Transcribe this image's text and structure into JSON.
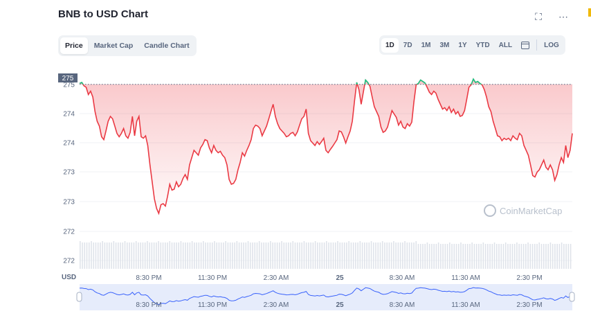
{
  "title": "BNB to USD Chart",
  "icons": {
    "fullscreen": "fullscreen-icon",
    "more": "more-icon",
    "calendar": "calendar-icon"
  },
  "labels": {
    "fullscreen": "⛶",
    "more": "⋯"
  },
  "tabs": [
    {
      "label": "Price",
      "active": true
    },
    {
      "label": "Market Cap",
      "active": false
    },
    {
      "label": "Candle Chart",
      "active": false
    }
  ],
  "ranges": [
    {
      "label": "1D",
      "active": true
    },
    {
      "label": "7D",
      "active": false
    },
    {
      "label": "1M",
      "active": false
    },
    {
      "label": "3M",
      "active": false
    },
    {
      "label": "1Y",
      "active": false
    },
    {
      "label": "YTD",
      "active": false
    },
    {
      "label": "ALL",
      "active": false
    }
  ],
  "log_label": "LOG",
  "watermark": "CoinMarketCap",
  "colors": {
    "down": "#ea3943",
    "up": "#16c784",
    "navigator": "#3861fb"
  },
  "chart_data": {
    "type": "area",
    "currency_label": "USD",
    "price_label": "275",
    "y_ticks": [
      "275",
      "274",
      "274",
      "273",
      "273",
      "272",
      "272"
    ],
    "x_ticks": [
      "8:30 PM",
      "11:30 PM",
      "2:30 AM",
      "25",
      "8:30 AM",
      "11:30 AM",
      "2:30 PM"
    ],
    "ylim": [
      271.8,
      275.2
    ],
    "open_price": 274.96,
    "series": [
      {
        "values": [
          274.98,
          275.0,
          274.93,
          274.9,
          274.75,
          274.82,
          274.7,
          274.4,
          274.2,
          274.1,
          273.88,
          273.82,
          274.0,
          274.2,
          274.3,
          274.25,
          274.1,
          273.95,
          273.88,
          273.95,
          274.05,
          273.9,
          273.85,
          273.97,
          274.3,
          273.9,
          274.2,
          274.3,
          273.88,
          273.85,
          273.9,
          273.7,
          273.3,
          272.95,
          272.6,
          272.4,
          272.3,
          272.48,
          272.5,
          272.45,
          272.65,
          272.9,
          272.78,
          272.8,
          272.95,
          272.85,
          272.9,
          273.02,
          273.1,
          273.0,
          273.3,
          273.45,
          273.6,
          273.55,
          273.5,
          273.65,
          273.72,
          273.82,
          273.8,
          273.65,
          273.55,
          273.7,
          273.6,
          273.55,
          273.58,
          273.5,
          273.45,
          273.3,
          273.0,
          272.9,
          272.92,
          273.0,
          273.2,
          273.35,
          273.55,
          273.48,
          273.6,
          273.7,
          273.82,
          274.05,
          274.12,
          274.1,
          274.05,
          273.9,
          274.0,
          274.1,
          274.25,
          274.4,
          274.55,
          274.3,
          274.15,
          274.05,
          274.0,
          273.95,
          273.88,
          273.9,
          273.95,
          273.97,
          273.9,
          273.98,
          274.12,
          274.25,
          274.3,
          274.45,
          273.95,
          273.8,
          273.75,
          273.7,
          273.78,
          273.72,
          273.78,
          273.85,
          273.6,
          273.55,
          273.62,
          273.68,
          273.75,
          273.82,
          274.0,
          273.98,
          273.88,
          273.75,
          273.88,
          274.0,
          274.2,
          274.62,
          275.0,
          274.85,
          274.55,
          274.8,
          275.05,
          275.0,
          274.92,
          274.7,
          274.5,
          274.4,
          274.3,
          274.08,
          273.97,
          274.0,
          274.08,
          274.25,
          274.42,
          274.35,
          274.28,
          274.12,
          274.2,
          274.08,
          274.05,
          274.15,
          274.1,
          274.18,
          274.6,
          274.95,
          274.98,
          275.05,
          275.02,
          274.99,
          274.9,
          274.8,
          274.75,
          274.82,
          274.78,
          274.65,
          274.55,
          274.45,
          274.48,
          274.42,
          274.5,
          274.38,
          274.45,
          274.35,
          274.4,
          274.3,
          274.32,
          274.42,
          274.65,
          274.9,
          274.95,
          275.07,
          275.0,
          275.02,
          274.98,
          274.95,
          274.85,
          274.7,
          274.5,
          274.4,
          274.2,
          274.05,
          273.9,
          273.88,
          273.8,
          273.85,
          273.82,
          273.85,
          273.8,
          273.9,
          273.85,
          273.82,
          273.95,
          273.9,
          273.7,
          273.6,
          273.5,
          273.3,
          273.08,
          273.05,
          273.15,
          273.2,
          273.3,
          273.4,
          273.25,
          273.2,
          273.3,
          273.2,
          272.98,
          273.1,
          273.3,
          273.45,
          273.35,
          273.7,
          273.45,
          273.6,
          273.95
        ]
      }
    ]
  }
}
